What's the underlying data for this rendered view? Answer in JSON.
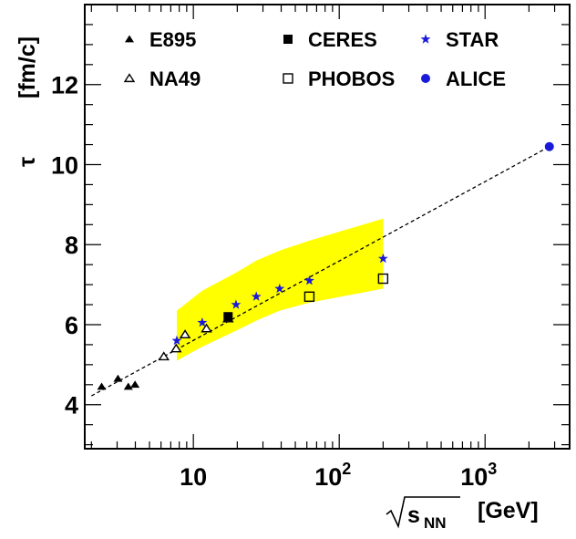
{
  "chart_data": {
    "type": "scatter",
    "title": "",
    "ylabel": "τ",
    "ylabel_unit": "[fm/c]",
    "xlabel": "√sNN",
    "xlabel_sqrt_base": "s",
    "xlabel_sub": "NN",
    "xlabel_unit": "[GeV]",
    "xscale": "log",
    "xlim": [
      1.8,
      3800
    ],
    "ylim": [
      2.9,
      14.0
    ],
    "x_ticks": [
      {
        "value": 10,
        "base": "10",
        "exp": ""
      },
      {
        "value": 100,
        "base": "10",
        "exp": "2"
      },
      {
        "value": 1000,
        "base": "10",
        "exp": "3"
      }
    ],
    "y_ticks": [
      4,
      6,
      8,
      10,
      12
    ],
    "legend_position": "top",
    "band": {
      "color": "#ffff00",
      "x": [
        7.7,
        11.5,
        19.6,
        27,
        39,
        62.4,
        200
      ],
      "y_low": [
        5.1,
        5.45,
        5.85,
        6.1,
        6.35,
        6.55,
        6.9
      ],
      "y_high": [
        6.35,
        6.85,
        7.3,
        7.6,
        7.85,
        8.1,
        8.65
      ]
    },
    "fit_line": {
      "x": [
        2.0,
        2760
      ],
      "y": [
        4.22,
        10.45
      ],
      "style": "dashed"
    },
    "series": [
      {
        "name": "E895",
        "marker": "triangle-filled",
        "color": "#000000",
        "points": [
          {
            "x": 2.35,
            "y": 4.45
          },
          {
            "x": 3.04,
            "y": 4.65
          },
          {
            "x": 3.58,
            "y": 4.45
          },
          {
            "x": 3.98,
            "y": 4.5
          }
        ]
      },
      {
        "name": "NA49",
        "marker": "triangle-open",
        "color": "#000000",
        "points": [
          {
            "x": 6.27,
            "y": 5.2
          },
          {
            "x": 7.62,
            "y": 5.4
          },
          {
            "x": 8.77,
            "y": 5.75
          },
          {
            "x": 12.3,
            "y": 5.9
          },
          {
            "x": 17.3,
            "y": 6.15
          }
        ]
      },
      {
        "name": "CERES",
        "marker": "square-filled",
        "color": "#000000",
        "points": [
          {
            "x": 17.3,
            "y": 6.2
          }
        ]
      },
      {
        "name": "PHOBOS",
        "marker": "square-open",
        "color": "#000000",
        "points": [
          {
            "x": 62.4,
            "y": 6.7
          },
          {
            "x": 200,
            "y": 7.15
          }
        ]
      },
      {
        "name": "STAR",
        "marker": "star",
        "color": "#1a1adb",
        "points": [
          {
            "x": 7.7,
            "y": 5.6
          },
          {
            "x": 11.5,
            "y": 6.05
          },
          {
            "x": 19.6,
            "y": 6.5
          },
          {
            "x": 27,
            "y": 6.7
          },
          {
            "x": 39,
            "y": 6.9
          },
          {
            "x": 62.4,
            "y": 7.1
          },
          {
            "x": 200,
            "y": 7.65
          }
        ]
      },
      {
        "name": "ALICE",
        "marker": "circle-filled",
        "color": "#1a1adb",
        "points": [
          {
            "x": 2760,
            "y": 10.45
          }
        ]
      }
    ]
  }
}
